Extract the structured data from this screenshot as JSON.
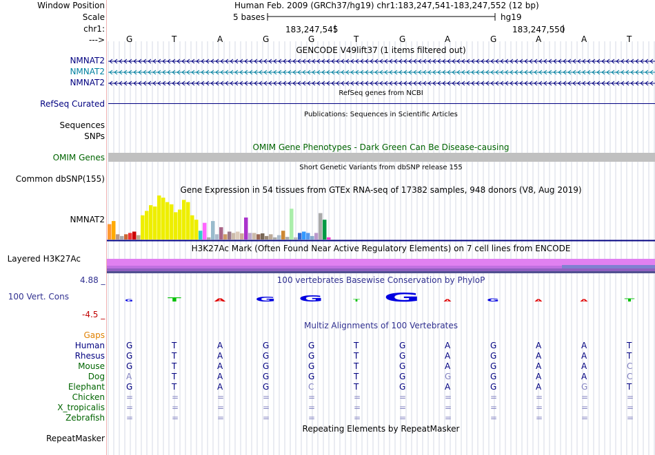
{
  "colors": {
    "nav": "#000080",
    "teal": "#0080a0",
    "omim": "#006400",
    "gaps": "#e08000",
    "pink": "#f0b0b0",
    "grid": "#c8d0e0"
  },
  "ruler": {
    "window_label": "Window Position",
    "scale_label": "Scale",
    "chrom_label": "chr1:",
    "arrow_label": "--->",
    "assembly_text": "Human Feb. 2009 (GRCh37/hg19)   chr1:183,247,541-183,247,552 (12 bp)",
    "scale_text": "5 bases",
    "db_text": "hg19",
    "pos1": "183,247,545",
    "pos2": "183,247,550",
    "bases": [
      "G",
      "T",
      "A",
      "G",
      "G",
      "T",
      "G",
      "A",
      "G",
      "A",
      "A",
      "T"
    ]
  },
  "gencode": {
    "title": "GENCODE V49lift37 (1 items filtered out)",
    "rows": [
      {
        "label": "NMNAT2",
        "color": "#000080"
      },
      {
        "label": "NMNAT2",
        "color": "#0080a0"
      },
      {
        "label": "NMNAT2",
        "color": "#000080"
      }
    ]
  },
  "refseq": {
    "title": "RefSeq genes from NCBI",
    "label": "RefSeq Curated"
  },
  "publications": {
    "title": "Publications: Sequences in Scientific Articles",
    "label1": "Sequences",
    "label2": "SNPs"
  },
  "omim": {
    "title": "OMIM Gene Phenotypes - Dark Green Can Be Disease-causing",
    "label": "OMIM Genes"
  },
  "dbsnp": {
    "title": "Short Genetic Variants from dbSNP release 155",
    "label": "Common dbSNP(155)"
  },
  "gtex": {
    "title": "Gene Expression in 54 tissues from GTEx RNA-seq of 17382 samples, 948 donors (V8, Aug 2019)",
    "label": "NMNAT2",
    "bars": [
      {
        "v": 0.35,
        "c": "#ff9933"
      },
      {
        "v": 0.42,
        "c": "#ffaa00"
      },
      {
        "v": 0.12,
        "c": "#bb9988"
      },
      {
        "v": 0.08,
        "c": "#aaaaaa"
      },
      {
        "v": 0.12,
        "c": "#cc6633"
      },
      {
        "v": 0.15,
        "c": "#ee3333"
      },
      {
        "v": 0.18,
        "c": "#cc0000"
      },
      {
        "v": 0.1,
        "c": "#bbaa88"
      },
      {
        "v": 0.55,
        "c": "#eeee00"
      },
      {
        "v": 0.65,
        "c": "#eeee00"
      },
      {
        "v": 0.78,
        "c": "#eeee00"
      },
      {
        "v": 0.75,
        "c": "#eeee00"
      },
      {
        "v": 1.0,
        "c": "#eeee00"
      },
      {
        "v": 0.95,
        "c": "#eeee00"
      },
      {
        "v": 0.85,
        "c": "#eeee00"
      },
      {
        "v": 0.8,
        "c": "#eeee00"
      },
      {
        "v": 0.62,
        "c": "#eeee00"
      },
      {
        "v": 0.68,
        "c": "#eeee00"
      },
      {
        "v": 0.9,
        "c": "#eeee00"
      },
      {
        "v": 0.85,
        "c": "#eeee00"
      },
      {
        "v": 0.55,
        "c": "#eeee00"
      },
      {
        "v": 0.45,
        "c": "#eeee00"
      },
      {
        "v": 0.2,
        "c": "#33cccc"
      },
      {
        "v": 0.38,
        "c": "#ff66ff"
      },
      {
        "v": 0.05,
        "c": "#aaaaaa"
      },
      {
        "v": 0.42,
        "c": "#99bbcc"
      },
      {
        "v": 0.12,
        "c": "#aabbcc"
      },
      {
        "v": 0.28,
        "c": "#aa6688"
      },
      {
        "v": 0.12,
        "c": "#cc9966"
      },
      {
        "v": 0.18,
        "c": "#997788"
      },
      {
        "v": 0.15,
        "c": "#ccbbaa"
      },
      {
        "v": 0.18,
        "c": "#ddccbb"
      },
      {
        "v": 0.14,
        "c": "#ccaa99"
      },
      {
        "v": 0.5,
        "c": "#aa33cc"
      },
      {
        "v": 0.15,
        "c": "#bbaacc"
      },
      {
        "v": 0.15,
        "c": "#ccbbaa"
      },
      {
        "v": 0.12,
        "c": "#996655"
      },
      {
        "v": 0.14,
        "c": "#776655"
      },
      {
        "v": 0.08,
        "c": "#998877"
      },
      {
        "v": 0.12,
        "c": "#bbaa99"
      },
      {
        "v": 0.05,
        "c": "#aaaaaa"
      },
      {
        "v": 0.1,
        "c": "#aabbcc"
      },
      {
        "v": 0.2,
        "c": "#cc8833"
      },
      {
        "v": 0.06,
        "c": "#aaaaaa"
      },
      {
        "v": 0.7,
        "c": "#aaeeaa"
      },
      {
        "v": 0.05,
        "c": "#bbbbbb"
      },
      {
        "v": 0.15,
        "c": "#3366cc"
      },
      {
        "v": 0.18,
        "c": "#3399ff"
      },
      {
        "v": 0.15,
        "c": "#5599ee"
      },
      {
        "v": 0.08,
        "c": "#88aacc"
      },
      {
        "v": 0.15,
        "c": "#bb99cc"
      },
      {
        "v": 0.6,
        "c": "#aaaaaa"
      },
      {
        "v": 0.45,
        "c": "#009944"
      },
      {
        "v": 0.05,
        "c": "#ff33cc"
      }
    ]
  },
  "h3k27ac": {
    "title": "H3K27Ac Mark (Often Found Near Active Regulatory Elements) on 7 cell lines from ENCODE",
    "label": "Layered H3K27Ac"
  },
  "cons": {
    "title": "100 vertebrates Basewise Conservation by PhyloP",
    "label": "100 Vert. Cons",
    "ymax": "4.88 _",
    "ymin": "-4.5 _"
  },
  "multiz": {
    "title": "Multiz Alignments of 100 Vertebrates",
    "gaps_label": "Gaps",
    "rows": [
      {
        "species": "Human",
        "bases": [
          "G",
          "T",
          "A",
          "G",
          "G",
          "T",
          "G",
          "A",
          "G",
          "A",
          "A",
          "T"
        ]
      },
      {
        "species": "Rhesus",
        "bases": [
          "G",
          "T",
          "A",
          "G",
          "G",
          "T",
          "G",
          "A",
          "G",
          "A",
          "A",
          "T"
        ]
      },
      {
        "species": "Mouse",
        "bases": [
          "G",
          "T",
          "A",
          "G",
          "G",
          "T",
          "G",
          "A",
          "G",
          "A",
          "A",
          "C"
        ]
      },
      {
        "species": "Dog",
        "bases": [
          "A",
          "T",
          "A",
          "G",
          "G",
          "T",
          "G",
          "G",
          "G",
          "A",
          "A",
          "C"
        ]
      },
      {
        "species": "Elephant",
        "bases": [
          "G",
          "T",
          "A",
          "G",
          "C",
          "T",
          "G",
          "A",
          "G",
          "A",
          "G",
          "T"
        ]
      },
      {
        "species": "Chicken",
        "bases": [
          "=",
          "=",
          "=",
          "=",
          "=",
          "=",
          "=",
          "=",
          "=",
          "=",
          "=",
          "="
        ]
      },
      {
        "species": "X_tropicalis",
        "bases": [
          "=",
          "=",
          "=",
          "=",
          "=",
          "=",
          "=",
          "=",
          "=",
          "=",
          "=",
          "="
        ]
      },
      {
        "species": "Zebrafish",
        "bases": [
          "=",
          "=",
          "=",
          "=",
          "=",
          "=",
          "=",
          "=",
          "=",
          "=",
          "=",
          "="
        ]
      }
    ]
  },
  "repeat": {
    "title": "Repeating Elements by RepeatMasker",
    "label": "RepeatMasker"
  }
}
